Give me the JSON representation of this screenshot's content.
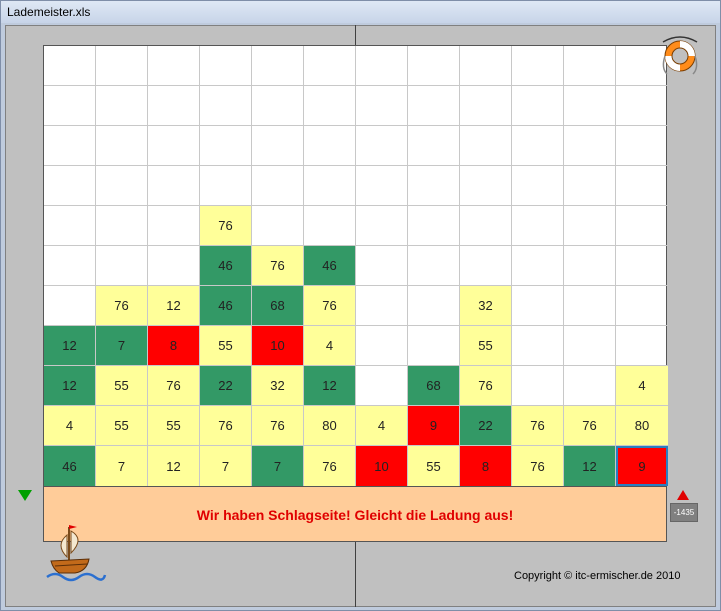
{
  "window": {
    "title": "Lademeister.xls"
  },
  "message": "Wir haben Schlagseite! Gleicht die Ladung aus!",
  "balance": "-1435",
  "copyright": "Copyright © itc-ermischer.de 2010",
  "icons": {
    "help": "lifebuoy-icon",
    "logo": "ship-icon",
    "left": "down-triangle-icon",
    "right": "up-triangle-icon"
  },
  "colors": {
    "yellow": "#ffff99",
    "green": "#339966",
    "red": "#ff0000",
    "panel": "#ffcc99",
    "message": "#e00000"
  },
  "grid": {
    "columns": 12,
    "rows": 11,
    "cells": [
      [
        null,
        null,
        null,
        null,
        null,
        null,
        null,
        null,
        null,
        null,
        null,
        null
      ],
      [
        null,
        null,
        null,
        null,
        null,
        null,
        null,
        null,
        null,
        null,
        null,
        null
      ],
      [
        null,
        null,
        null,
        null,
        null,
        null,
        null,
        null,
        null,
        null,
        null,
        null
      ],
      [
        null,
        null,
        null,
        null,
        null,
        null,
        null,
        null,
        null,
        null,
        null,
        null
      ],
      [
        null,
        null,
        null,
        {
          "v": "76",
          "c": "y"
        },
        null,
        null,
        null,
        null,
        null,
        null,
        null,
        null
      ],
      [
        null,
        null,
        null,
        {
          "v": "46",
          "c": "g"
        },
        {
          "v": "76",
          "c": "y"
        },
        {
          "v": "46",
          "c": "g"
        },
        null,
        null,
        null,
        null,
        null,
        null
      ],
      [
        null,
        {
          "v": "76",
          "c": "y"
        },
        {
          "v": "12",
          "c": "y"
        },
        {
          "v": "46",
          "c": "g"
        },
        {
          "v": "68",
          "c": "g"
        },
        {
          "v": "76",
          "c": "y"
        },
        null,
        null,
        {
          "v": "32",
          "c": "y"
        },
        null,
        null,
        null
      ],
      [
        {
          "v": "12",
          "c": "g"
        },
        {
          "v": "7",
          "c": "g"
        },
        {
          "v": "8",
          "c": "r"
        },
        {
          "v": "55",
          "c": "y"
        },
        {
          "v": "10",
          "c": "r"
        },
        {
          "v": "4",
          "c": "y"
        },
        null,
        null,
        {
          "v": "55",
          "c": "y"
        },
        null,
        null,
        null
      ],
      [
        {
          "v": "12",
          "c": "g"
        },
        {
          "v": "55",
          "c": "y"
        },
        {
          "v": "76",
          "c": "y"
        },
        {
          "v": "22",
          "c": "g"
        },
        {
          "v": "32",
          "c": "y"
        },
        {
          "v": "12",
          "c": "g"
        },
        null,
        {
          "v": "68",
          "c": "g"
        },
        {
          "v": "76",
          "c": "y"
        },
        null,
        null,
        {
          "v": "4",
          "c": "y"
        }
      ],
      [
        {
          "v": "4",
          "c": "y"
        },
        {
          "v": "55",
          "c": "y"
        },
        {
          "v": "55",
          "c": "y"
        },
        {
          "v": "76",
          "c": "y"
        },
        {
          "v": "76",
          "c": "y"
        },
        {
          "v": "80",
          "c": "y"
        },
        {
          "v": "4",
          "c": "y"
        },
        {
          "v": "9",
          "c": "r"
        },
        {
          "v": "22",
          "c": "g"
        },
        {
          "v": "76",
          "c": "y"
        },
        {
          "v": "76",
          "c": "y"
        },
        {
          "v": "80",
          "c": "y"
        }
      ],
      [
        {
          "v": "46",
          "c": "g"
        },
        {
          "v": "7",
          "c": "y"
        },
        {
          "v": "12",
          "c": "y"
        },
        {
          "v": "7",
          "c": "y"
        },
        {
          "v": "7",
          "c": "g"
        },
        {
          "v": "76",
          "c": "y"
        },
        {
          "v": "10",
          "c": "r"
        },
        {
          "v": "55",
          "c": "y"
        },
        {
          "v": "8",
          "c": "r"
        },
        {
          "v": "76",
          "c": "y"
        },
        {
          "v": "12",
          "c": "g"
        },
        {
          "v": "9",
          "c": "r"
        }
      ]
    ],
    "selected": [
      10,
      11
    ]
  }
}
